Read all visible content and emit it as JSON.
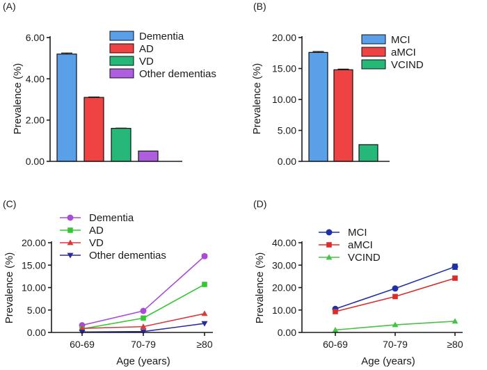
{
  "colors": {
    "blue": "#5aa0e8",
    "red": "#ef4242",
    "green": "#25b878",
    "purple": "#b05ee0",
    "line_purple": "#a94bd6",
    "line_green": "#33c733",
    "line_red": "#d93a3a",
    "line_navy": "#2b2b9c",
    "line_blue": "#1f2fa8",
    "line_red2": "#dd2b2b",
    "line_green2": "#45c345",
    "axis": "#1a1a1a"
  },
  "chart_data": [
    {
      "panel": "(A)",
      "type": "bar",
      "ylabel": "Prevalence (%)",
      "xlabel": "",
      "ylim": [
        0,
        6
      ],
      "yticks": [
        "0.00",
        "2.00",
        "4.00",
        "6.00"
      ],
      "categories": [
        "Dementia",
        "AD",
        "VD",
        "Other dementias"
      ],
      "values": [
        5.2,
        3.1,
        1.6,
        0.5
      ],
      "errors": [
        0.05,
        0.02,
        0.01,
        0
      ],
      "colors": [
        "#5aa0e8",
        "#ef4242",
        "#25b878",
        "#b05ee0"
      ],
      "legend": [
        "Dementia",
        "AD",
        "VD",
        "Other dementias"
      ],
      "legend_position": "top-right"
    },
    {
      "panel": "(B)",
      "type": "bar",
      "ylabel": "Prevalence (%)",
      "xlabel": "",
      "ylim": [
        0,
        20
      ],
      "yticks": [
        "0.00",
        "5.00",
        "10.00",
        "15.00",
        "20.00"
      ],
      "categories": [
        "MCI",
        "aMCI",
        "VCIND"
      ],
      "values": [
        17.6,
        14.8,
        2.7
      ],
      "errors": [
        0.15,
        0.1,
        0
      ],
      "colors": [
        "#5aa0e8",
        "#ef4242",
        "#25b878"
      ],
      "legend": [
        "MCI",
        "aMCI",
        "VCIND"
      ],
      "legend_position": "top-right"
    },
    {
      "panel": "(C)",
      "type": "line",
      "ylabel": "Prevalence (%)",
      "xlabel": "Age (years)",
      "ylim": [
        0,
        20
      ],
      "yticks": [
        "0.00",
        "5.00",
        "10.00",
        "15.00",
        "20.00"
      ],
      "categories": [
        "60-69",
        "70-79",
        "≥80"
      ],
      "series": [
        {
          "name": "Dementia",
          "values": [
            1.6,
            4.8,
            17.0
          ],
          "errors": [
            0,
            0,
            0.4
          ],
          "color": "#a94bd6",
          "marker": "circle"
        },
        {
          "name": "AD",
          "values": [
            0.8,
            3.2,
            10.7
          ],
          "errors": [
            0,
            0,
            0
          ],
          "color": "#33c733",
          "marker": "square"
        },
        {
          "name": "VD",
          "values": [
            0.9,
            1.3,
            4.2
          ],
          "errors": [
            0,
            0,
            0
          ],
          "color": "#d93a3a",
          "marker": "triangle-up"
        },
        {
          "name": "Other dementias",
          "values": [
            0.1,
            0.2,
            2.0
          ],
          "errors": [
            0,
            0,
            0
          ],
          "color": "#2b2b9c",
          "marker": "triangle-down"
        }
      ],
      "legend_position": "top-left"
    },
    {
      "panel": "(D)",
      "type": "line",
      "ylabel": "Prevalence (%)",
      "xlabel": "Age (years)",
      "ylim": [
        0,
        40
      ],
      "yticks": [
        "0.00",
        "10.00",
        "20.00",
        "30.00",
        "40.00"
      ],
      "categories": [
        "60-69",
        "70-79",
        "≥80"
      ],
      "series": [
        {
          "name": "MCI",
          "values": [
            10.5,
            19.6,
            29.3
          ],
          "errors": [
            0,
            0,
            1.2
          ],
          "color": "#1f2fa8",
          "marker": "circle"
        },
        {
          "name": "aMCI",
          "values": [
            9.3,
            16.0,
            24.2
          ],
          "errors": [
            0,
            0,
            0.8
          ],
          "color": "#dd2b2b",
          "marker": "square"
        },
        {
          "name": "VCIND",
          "values": [
            1.1,
            3.4,
            5.0
          ],
          "errors": [
            0,
            0,
            0
          ],
          "color": "#45c345",
          "marker": "triangle-up"
        }
      ],
      "legend_position": "top-left"
    }
  ]
}
